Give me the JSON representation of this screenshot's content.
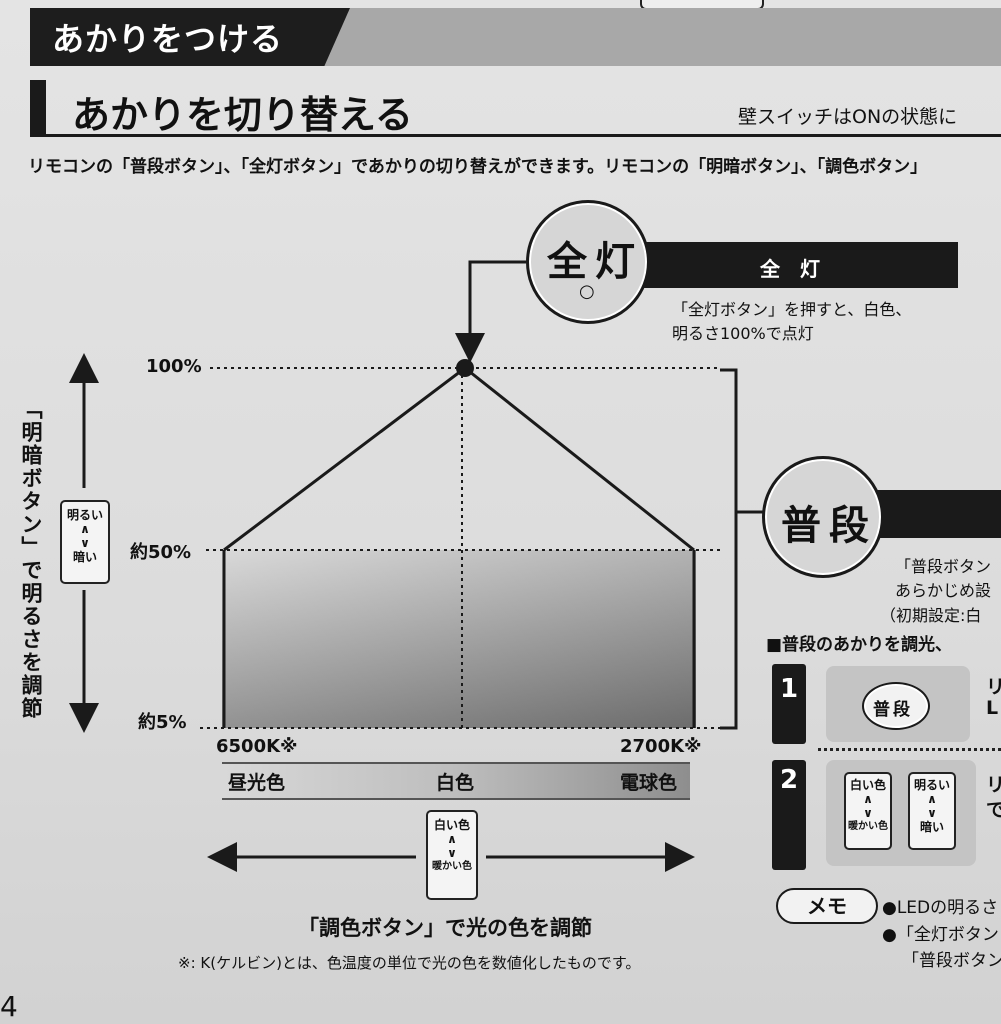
{
  "header": {
    "section_title": "あかりをつける",
    "heading": "あかりを切り替える",
    "heading_right": "壁スイッチはONの状態に",
    "intro": "リモコンの「普段ボタン」、「全灯ボタン」であかりの切り替えができます。リモコンの「明暗ボタン」、「調色ボタン」"
  },
  "zentou": {
    "circle_label": "全灯",
    "circle_mark": "○",
    "bar_label": "全　灯",
    "desc_line1": "「全灯ボタン」を押すと、白色、",
    "desc_line2": "明るさ100%で点灯"
  },
  "fudan": {
    "circle_label": "普段",
    "desc_line1": "「普段ボタン",
    "desc_line2": "あらかじめ設",
    "desc_line3": "（初期設定:白",
    "section_heading": "■普段のあかりを調光、",
    "steps": [
      {
        "num": "1",
        "button": "普段",
        "text": "リ",
        "text2": "L"
      },
      {
        "num": "2",
        "btn1": [
          "白い色",
          "∧",
          "∨",
          "暖かい色"
        ],
        "btn2": [
          "明るい",
          "∧",
          "∨",
          "暗い"
        ],
        "text": "リ",
        "text2": "で"
      }
    ]
  },
  "chart": {
    "y_axis_caption": "「明暗ボタン」で明るさを調節",
    "brightness_button": [
      "明るい",
      "∧",
      "∨",
      "暗い"
    ],
    "y_ticks": [
      "100%",
      "約50%",
      "約5%"
    ],
    "x_left": "6500K※",
    "x_right": "2700K※",
    "strip_labels": [
      "昼光色",
      "白色",
      "電球色"
    ],
    "color_button": [
      "白い色",
      "∧",
      "∨",
      "暖かい色"
    ],
    "x_axis_caption": "「調色ボタン」で光の色を調節",
    "footnote": "※: K(ケルビン)とは、色温度の単位で光の色を数値化したものです。"
  },
  "memo": {
    "label": "メモ",
    "line1": "●LEDの明るさ",
    "line2": "●「全灯ボタン",
    "line3": "「普段ボタン"
  },
  "page_number": "4"
}
